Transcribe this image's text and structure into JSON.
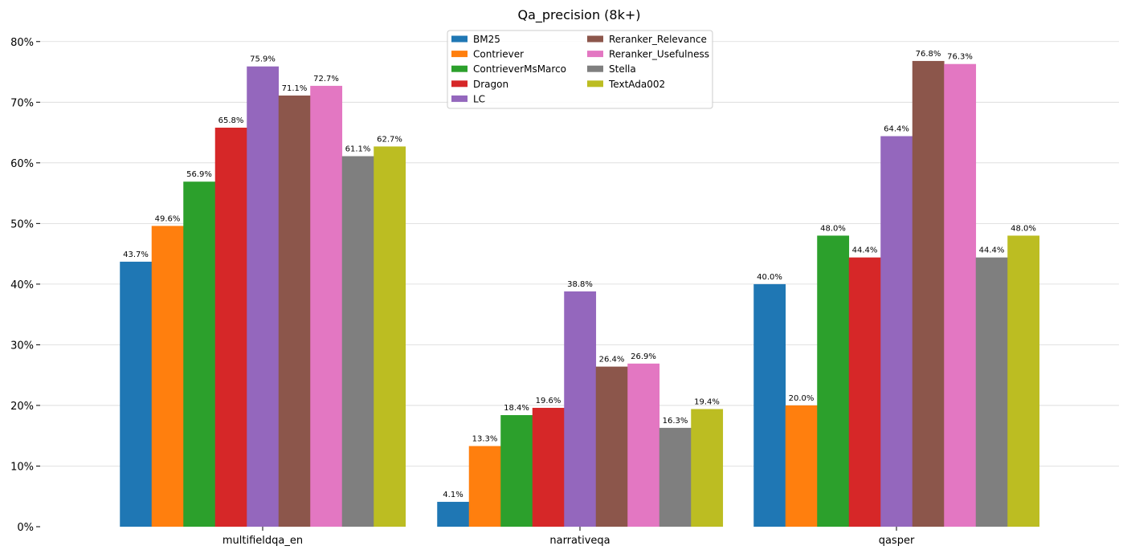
{
  "chart_data": {
    "type": "bar",
    "title": "Qa_precision (8k+)",
    "xlabel": "",
    "ylabel": "",
    "ylim": [
      0,
      85
    ],
    "yticks": [
      0,
      10,
      20,
      30,
      40,
      50,
      60,
      70,
      80
    ],
    "ytick_labels": [
      "0%",
      "10%",
      "20%",
      "30%",
      "40%",
      "50%",
      "60%",
      "70%",
      "80%"
    ],
    "grid": "horizontal",
    "legend_position": "top-center",
    "categories": [
      "multifieldqa_en",
      "narrativeqa",
      "qasper"
    ],
    "series": [
      {
        "name": "BM25",
        "color": "#1f77b4",
        "values": [
          43.7,
          4.1,
          40.0
        ],
        "labels": [
          "43.7%",
          "4.1%",
          "40.0%"
        ]
      },
      {
        "name": "Contriever",
        "color": "#ff7f0e",
        "values": [
          49.6,
          13.3,
          20.0
        ],
        "labels": [
          "49.6%",
          "13.3%",
          "20.0%"
        ]
      },
      {
        "name": "ContrieverMsMarco",
        "color": "#2ca02c",
        "values": [
          56.9,
          18.4,
          48.0
        ],
        "labels": [
          "56.9%",
          "18.4%",
          "48.0%"
        ]
      },
      {
        "name": "Dragon",
        "color": "#d62728",
        "values": [
          65.8,
          19.6,
          44.4
        ],
        "labels": [
          "65.8%",
          "19.6%",
          "44.4%"
        ]
      },
      {
        "name": "LC",
        "color": "#9467bd",
        "values": [
          75.9,
          38.8,
          64.4
        ],
        "labels": [
          "75.9%",
          "38.8%",
          "64.4%"
        ]
      },
      {
        "name": "Reranker_Relevance",
        "color": "#8c564b",
        "values": [
          71.1,
          26.4,
          76.8
        ],
        "labels": [
          "71.1%",
          "26.4%",
          "76.8%"
        ]
      },
      {
        "name": "Reranker_Usefulness",
        "color": "#e377c2",
        "values": [
          72.7,
          26.9,
          76.3
        ],
        "labels": [
          "72.7%",
          "26.9%",
          "76.3%"
        ]
      },
      {
        "name": "Stella",
        "color": "#7f7f7f",
        "values": [
          61.1,
          16.3,
          44.4
        ],
        "labels": [
          "61.1%",
          "16.3%",
          "44.4%"
        ]
      },
      {
        "name": "TextAda002",
        "color": "#bcbd22",
        "values": [
          62.7,
          19.4,
          48.0
        ],
        "labels": [
          "62.7%",
          "19.4%",
          "48.0%"
        ]
      }
    ]
  }
}
